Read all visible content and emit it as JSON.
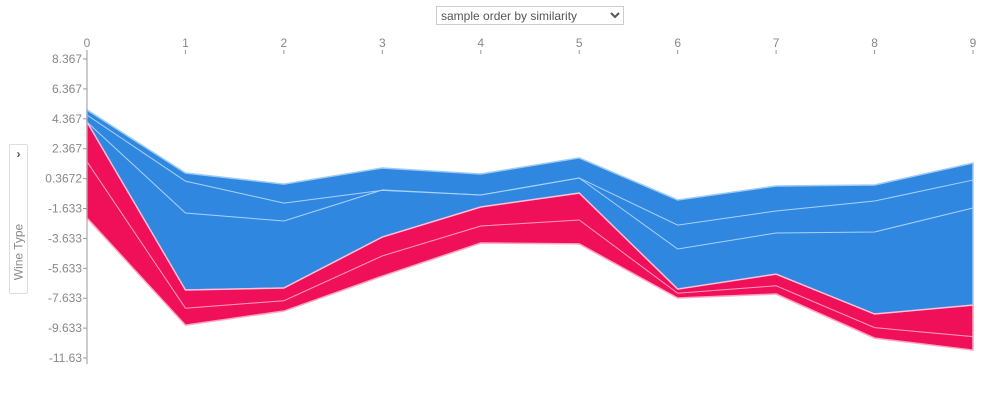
{
  "controls": {
    "order_select": "sample order by similarity",
    "ylabel_toggle": "›",
    "ylabel": "Wine Type"
  },
  "chart_data": {
    "type": "area",
    "title": "",
    "ylabel": "Wine Type",
    "x": [
      0,
      1,
      2,
      3,
      4,
      5,
      6,
      7,
      8,
      9
    ],
    "xlim": [
      0,
      9
    ],
    "ylim": [
      -11.63,
      8.367
    ],
    "yticks": [
      "8.367",
      "6.367",
      "4.367",
      "2.367",
      "0.3672",
      "-1.633",
      "-3.633",
      "-5.633",
      "-7.633",
      "-9.633",
      "-11.63"
    ],
    "ytick_values": [
      8.367,
      6.367,
      4.367,
      2.367,
      0.3672,
      -1.633,
      -3.633,
      -5.633,
      -7.633,
      -9.633,
      -11.63
    ],
    "upper": [
      4.96,
      0.74,
      0.0,
      1.08,
      0.68,
      1.75,
      -1.06,
      -0.13,
      -0.06,
      1.41
    ],
    "output": [
      4.15,
      -7.08,
      -6.95,
      -3.54,
      -1.53,
      -0.6,
      -7.02,
      -6.02,
      -8.69,
      -8.09
    ],
    "lower": [
      -2.27,
      -9.43,
      -8.49,
      -6.15,
      -3.94,
      -4.0,
      -7.62,
      -7.35,
      -10.3,
      -11.1
    ],
    "blue_lines": [
      [
        4.62,
        0.2,
        -1.27,
        -0.42,
        -0.73,
        0.41,
        -2.74,
        -1.8,
        -1.13,
        0.27
      ],
      [
        4.15,
        -1.93,
        -2.47,
        -0.39,
        -0.73,
        0.41,
        -4.34,
        -3.27,
        -3.2,
        -1.6
      ]
    ],
    "red_lines": [
      [
        1.5,
        -8.3,
        -7.8,
        -4.8,
        -2.8,
        -2.4,
        -7.3,
        -6.8,
        -9.6,
        -10.2
      ]
    ],
    "colors": {
      "negative": "#1e88e5",
      "positive": "#ff0d57",
      "negative_fill": "#3087e0",
      "positive_fill": "#f0105a"
    }
  }
}
